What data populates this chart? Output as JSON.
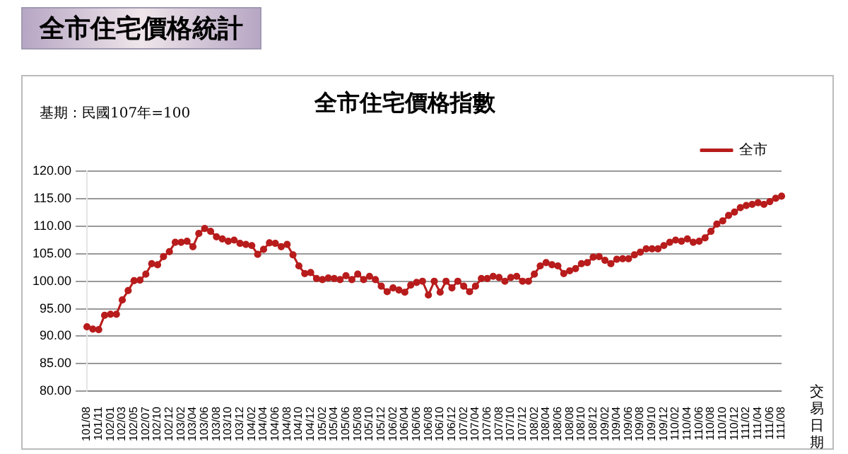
{
  "chart_data": {
    "type": "line",
    "title": "全市住宅價格統計",
    "subtitle": "全市住宅價格指數",
    "xlabel": "交易日期",
    "annotations": [
      "基期：民國107年=100"
    ],
    "categories": [
      "101/08",
      null,
      "101/11",
      null,
      "102/01",
      null,
      "102/03",
      null,
      "102/05",
      null,
      "102/07",
      null,
      "102/10",
      null,
      "102/12",
      null,
      "103/02",
      null,
      "103/04",
      null,
      "103/06",
      null,
      "103/08",
      null,
      "103/10",
      null,
      "103/12",
      null,
      "104/02",
      null,
      "104/04",
      null,
      "104/06",
      null,
      "104/08",
      null,
      "104/10",
      null,
      "104/12",
      null,
      "105/02",
      null,
      "105/04",
      null,
      "105/06",
      null,
      "105/08",
      null,
      "105/10",
      null,
      "105/12",
      null,
      "106/02",
      null,
      "106/04",
      null,
      "106/06",
      null,
      "106/08",
      null,
      "106/10",
      null,
      "106/12",
      null,
      "107/02",
      null,
      "107/04",
      null,
      "107/06",
      null,
      "107/08",
      null,
      "107/10",
      null,
      "107/12",
      null,
      "108/02",
      null,
      "108/04",
      null,
      "108/06",
      null,
      "108/08",
      null,
      "108/10",
      null,
      "108/12",
      null,
      "109/02",
      null,
      "109/04",
      null,
      "109/06",
      null,
      "109/08",
      null,
      "109/10",
      null,
      "109/12",
      null,
      "110/02",
      null,
      "110/04",
      null,
      "110/06",
      null,
      "110/08",
      null,
      "110/10",
      null,
      "110/12",
      null,
      "111/02",
      null,
      "111/04",
      null,
      "111/06",
      null,
      "111/08"
    ],
    "series": [
      {
        "name": "全市",
        "color": "#b81c1c",
        "values": [
          91.7,
          91.3,
          91.2,
          93.8,
          94,
          94,
          96.6,
          98.3,
          100.1,
          100.2,
          101.3,
          103.2,
          103,
          104.5,
          105.4,
          107.1,
          107.1,
          107.3,
          106.3,
          108.7,
          109.6,
          109.1,
          108.1,
          107.7,
          107.3,
          107.5,
          106.9,
          106.7,
          106.5,
          104.9,
          105.8,
          107,
          106.9,
          106.3,
          106.7,
          104.8,
          102.8,
          101.4,
          101.6,
          100.5,
          100.3,
          100.6,
          100.5,
          100.3,
          101,
          100.3,
          101.3,
          100.3,
          100.9,
          100.3,
          99.1,
          98.1,
          98.8,
          98.4,
          98,
          99.3,
          99.8,
          100,
          97.5,
          100,
          98,
          100,
          98.8,
          100,
          99.1,
          98.1,
          99.1,
          100.5,
          100.5,
          100.9,
          100.7,
          100,
          100.7,
          100.9,
          100,
          100,
          101.3,
          102.8,
          103.4,
          103,
          102.8,
          101.4,
          101.9,
          102.3,
          103.2,
          103.4,
          104.4,
          104.5,
          103.8,
          103.2,
          104,
          104.1,
          104.1,
          104.8,
          105.3,
          105.9,
          105.9,
          105.9,
          106.5,
          107.1,
          107.5,
          107.3,
          107.7,
          107.1,
          107.3,
          107.9,
          109.1,
          110.4,
          111,
          112,
          112.6,
          113.4,
          113.8,
          114,
          114.3,
          114,
          114.5,
          115.1,
          115.5
        ]
      }
    ],
    "ylim": [
      80,
      120
    ],
    "yticks": [
      {
        "value": 80,
        "label": "80.00"
      },
      {
        "value": 85,
        "label": "85.00"
      },
      {
        "value": 90,
        "label": "90.00"
      },
      {
        "value": 95,
        "label": "95.00"
      },
      {
        "value": 100,
        "label": "100.00"
      },
      {
        "value": 105,
        "label": "105.00"
      },
      {
        "value": 110,
        "label": "110.00"
      },
      {
        "value": 115,
        "label": "115.00"
      },
      {
        "value": 120,
        "label": "120.00"
      }
    ],
    "grid": "y",
    "legend": "top right",
    "marker": "circle",
    "line_style": "solid"
  }
}
